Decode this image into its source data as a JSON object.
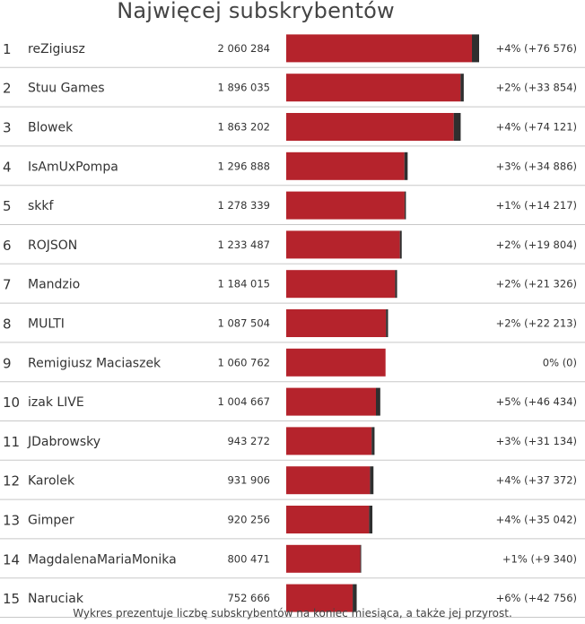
{
  "title": "Najwięcej subskrybentów",
  "footnote": "Wykres prezentuje liczbę subskrybentów na koniec miesiąca, a także jej przyrost.",
  "colors": {
    "base": "#b5232c",
    "growth": "#2f2f2f",
    "divider": "#c8c8c8",
    "text": "#333333"
  },
  "chart_data": {
    "type": "bar",
    "orientation": "horizontal",
    "series": [
      {
        "name": "",
        "role": "subscribers_previous",
        "values": [
          1983708,
          1862181,
          1789081,
          1262002,
          1264122,
          1213683,
          1162689,
          1065291,
          1060762,
          958233,
          912138,
          894534,
          885214,
          791131,
          709910
        ]
      },
      {
        "name": "",
        "role": "growth",
        "values": [
          76576,
          33854,
          74121,
          34886,
          14217,
          19804,
          21326,
          22213,
          0,
          46434,
          31134,
          37372,
          35042,
          9340,
          42756
        ]
      }
    ],
    "rows": [
      {
        "rank": "1",
        "name": "reZigiusz",
        "value_label": "2 060 284",
        "total": 2060284,
        "growth": 76576,
        "change_label": "+4% (+76 576)"
      },
      {
        "rank": "2",
        "name": "Stuu Games",
        "value_label": "1 896 035",
        "total": 1896035,
        "growth": 33854,
        "change_label": "+2% (+33 854)"
      },
      {
        "rank": "3",
        "name": "Blowek",
        "value_label": "1 863 202",
        "total": 1863202,
        "growth": 74121,
        "change_label": "+4% (+74 121)"
      },
      {
        "rank": "4",
        "name": "IsAmUxPompa",
        "value_label": "1 296 888",
        "total": 1296888,
        "growth": 34886,
        "change_label": "+3% (+34 886)"
      },
      {
        "rank": "5",
        "name": "skkf",
        "value_label": "1 278 339",
        "total": 1278339,
        "growth": 14217,
        "change_label": "+1% (+14 217)"
      },
      {
        "rank": "6",
        "name": "ROJSON",
        "value_label": "1 233 487",
        "total": 1233487,
        "growth": 19804,
        "change_label": "+2% (+19 804)"
      },
      {
        "rank": "7",
        "name": "Mandzio",
        "value_label": "1 184 015",
        "total": 1184015,
        "growth": 21326,
        "change_label": "+2% (+21 326)"
      },
      {
        "rank": "8",
        "name": "MULTI",
        "value_label": "1 087 504",
        "total": 1087504,
        "growth": 22213,
        "change_label": "+2% (+22 213)"
      },
      {
        "rank": "9",
        "name": "Remigiusz Maciaszek",
        "value_label": "1 060 762",
        "total": 1060762,
        "growth": 0,
        "change_label": "0% (0)"
      },
      {
        "rank": "10",
        "name": "izak LIVE",
        "value_label": "1 004 667",
        "total": 1004667,
        "growth": 46434,
        "change_label": "+5% (+46 434)"
      },
      {
        "rank": "11",
        "name": "JDabrowsky",
        "value_label": "943 272",
        "total": 943272,
        "growth": 31134,
        "change_label": "+3% (+31 134)"
      },
      {
        "rank": "12",
        "name": "Karolek",
        "value_label": "931 906",
        "total": 931906,
        "growth": 37372,
        "change_label": "+4% (+37 372)"
      },
      {
        "rank": "13",
        "name": "Gimper",
        "value_label": "920 256",
        "total": 920256,
        "growth": 35042,
        "change_label": "+4% (+35 042)"
      },
      {
        "rank": "14",
        "name": "MagdalenaMariaMonika",
        "value_label": "800 471",
        "total": 800471,
        "growth": 9340,
        "change_label": "+1% (+9 340)"
      },
      {
        "rank": "15",
        "name": "Naruciak",
        "value_label": "752 666",
        "total": 752666,
        "growth": 42756,
        "change_label": "+6% (+42 756)"
      }
    ],
    "xlim": [
      0,
      2060284
    ],
    "grid": false,
    "legend": "none"
  }
}
